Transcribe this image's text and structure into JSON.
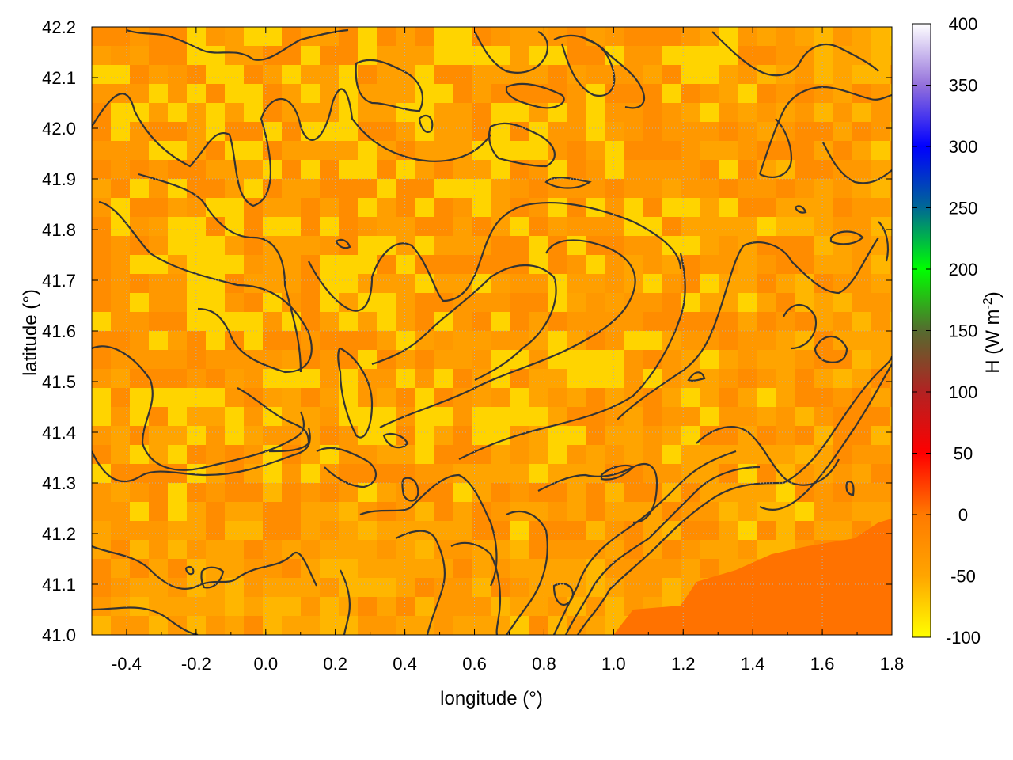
{
  "chart_data": {
    "type": "heatmap",
    "title": "",
    "xlabel": "longitude (°)",
    "ylabel": "latitude (°)",
    "xlim": [
      -0.5,
      1.8
    ],
    "ylim": [
      41.0,
      42.2
    ],
    "xticks": [
      "-0.4",
      "-0.2",
      "0.0",
      "0.2",
      "0.4",
      "0.6",
      "0.8",
      "1.0",
      "1.2",
      "1.4",
      "1.6",
      "1.8"
    ],
    "yticks": [
      "41.0",
      "41.1",
      "41.2",
      "41.3",
      "41.4",
      "41.5",
      "41.6",
      "41.7",
      "41.8",
      "41.9",
      "42.0",
      "42.1",
      "42.2"
    ],
    "grid": true,
    "colorbar": {
      "label_main": "H (W m",
      "label_sup": "-2",
      "label_end": ")",
      "range": [
        -100,
        400
      ],
      "ticks": [
        "-100",
        "-50",
        "0",
        "50",
        "100",
        "150",
        "200",
        "250",
        "300",
        "350",
        "400"
      ],
      "stops": [
        {
          "value": -100,
          "color": "#ffff00"
        },
        {
          "value": -50,
          "color": "#ffa500"
        },
        {
          "value": 0,
          "color": "#ff7a00"
        },
        {
          "value": 50,
          "color": "#ff0000"
        },
        {
          "value": 100,
          "color": "#b22222"
        },
        {
          "value": 150,
          "color": "#556b2f"
        },
        {
          "value": 200,
          "color": "#00ff00"
        },
        {
          "value": 250,
          "color": "#006994"
        },
        {
          "value": 300,
          "color": "#0000ff"
        },
        {
          "value": 350,
          "color": "#9370db"
        },
        {
          "value": 400,
          "color": "#ffffff"
        }
      ]
    },
    "field_summary": {
      "typical_value_range": [
        -100,
        10
      ],
      "coast_region_value": 0,
      "note_colors": {
        "low": "#ffff00",
        "mid": "#ffa500",
        "high": "#ff6a00"
      }
    },
    "contour_color": "#333333"
  }
}
